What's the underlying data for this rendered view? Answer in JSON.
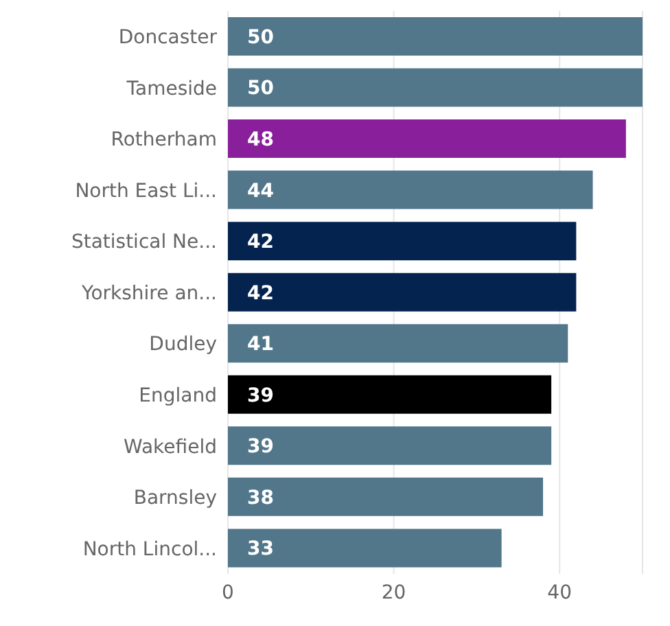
{
  "chart_data": {
    "type": "bar",
    "orientation": "horizontal",
    "categories": [
      "Doncaster",
      "Tameside",
      "Rotherham",
      "North East Li...",
      "Statistical Ne...",
      "Yorkshire an...",
      "Dudley",
      "England",
      "Wakefield",
      "Barnsley",
      "North Lincol..."
    ],
    "values": [
      50,
      50,
      48,
      44,
      42,
      42,
      41,
      39,
      39,
      38,
      33
    ],
    "colors": [
      "#52768a",
      "#52768a",
      "#8a1f9c",
      "#52768a",
      "#04244f",
      "#04244f",
      "#52768a",
      "#000000",
      "#52768a",
      "#52768a",
      "#52768a"
    ],
    "xlim": [
      0,
      50
    ],
    "xticks": [
      0,
      20,
      40
    ],
    "grid": "x",
    "data_labels": true
  }
}
